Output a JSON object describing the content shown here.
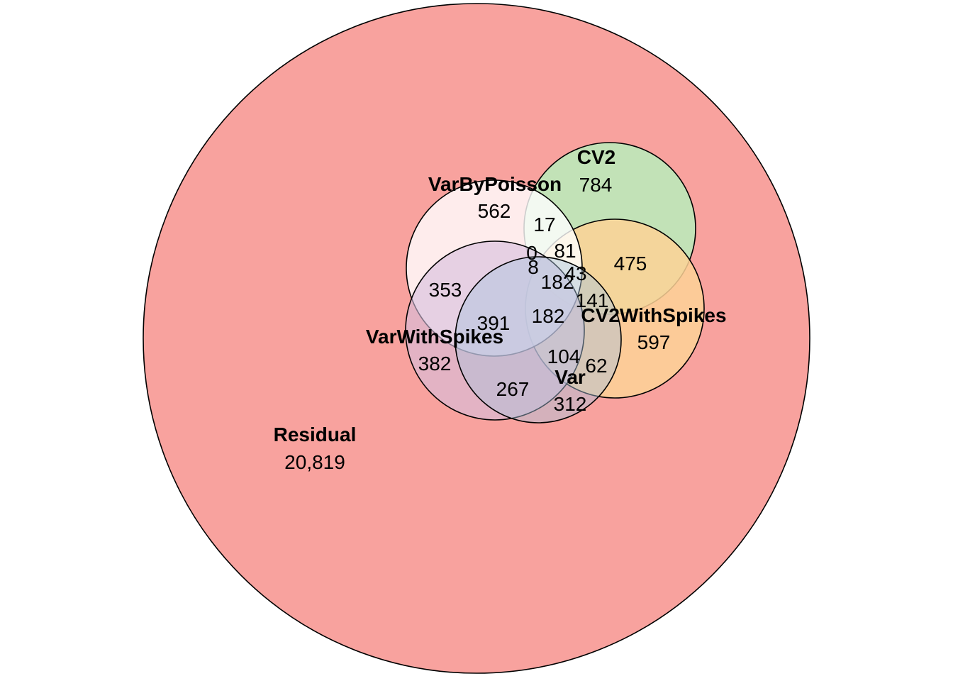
{
  "sets": {
    "residual": {
      "name": "Residual",
      "count": "20,819",
      "color": "#F8A29E"
    },
    "varbypoisson": {
      "name": "VarByPoisson",
      "count": "562",
      "color": "#FFFFFF"
    },
    "cv2": {
      "name": "CV2",
      "count": "784",
      "color": "#BFE6B8"
    },
    "cv2withspikes": {
      "name": "CV2WithSpikes",
      "count": "597",
      "color": "#FDD296"
    },
    "varwithspikes": {
      "name": "VarWithSpikes",
      "count": "382",
      "color": "#D5BEDD"
    },
    "var": {
      "name": "Var",
      "count": "312",
      "color": "#A8C3DE"
    }
  },
  "intersections": {
    "i17": "17",
    "i81": "81",
    "i475": "475",
    "i0": "0",
    "i8": "8",
    "i43": "43",
    "i182a": "182",
    "i353": "353",
    "i391": "391",
    "i182b": "182",
    "i141": "141",
    "i104": "104",
    "i62": "62",
    "i267": "267"
  }
}
